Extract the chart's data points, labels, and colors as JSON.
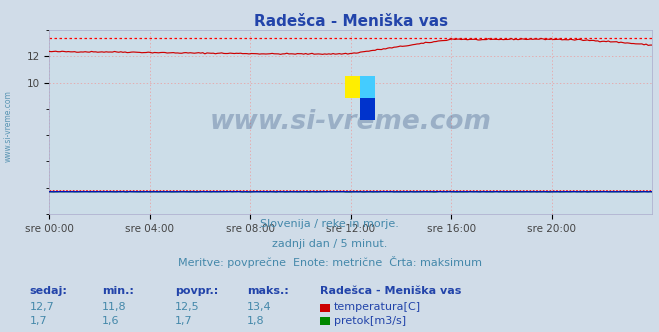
{
  "title": "Radešca - Meniška vas",
  "bg_color": "#d0dce8",
  "plot_bg_color": "#ccdde8",
  "grid_color": "#ee9999",
  "x_labels": [
    "sre 00:00",
    "sre 04:00",
    "sre 08:00",
    "sre 12:00",
    "sre 16:00",
    "sre 20:00"
  ],
  "y_ticks": [
    10,
    12
  ],
  "y_min": 0,
  "y_max": 14.0,
  "temp_color": "#cc0000",
  "flow_color": "#008800",
  "height_color": "#0000cc",
  "max_line_color": "#ff0000",
  "watermark_text": "www.si-vreme.com",
  "watermark_color": "#1a3a6e",
  "watermark_alpha": 0.28,
  "subtitle1": "Slovenija / reke in morje.",
  "subtitle2": "zadnji dan / 5 minut.",
  "subtitle3": "Meritve: povprečne  Enote: metrične  Črta: maksimum",
  "footer_label1": "sedaj:",
  "footer_label2": "min.:",
  "footer_label3": "povpr.:",
  "footer_label4": "maks.:",
  "footer_station": "Radešca - Meniška vas",
  "temp_sedaj": "12,7",
  "temp_min": "11,8",
  "temp_povpr": "12,5",
  "temp_maks": "13,4",
  "flow_sedaj": "1,7",
  "flow_min": "1,6",
  "flow_povpr": "1,7",
  "flow_maks": "1,8",
  "temp_legend": "temperatura[C]",
  "flow_legend": "pretok[m3/s]",
  "n_points": 288,
  "temp_max_line": 13.4,
  "flow_max_line": 1.8,
  "title_color": "#2244aa",
  "subtitle_color": "#4488aa",
  "footer_header_color": "#2244aa",
  "footer_data_color": "#4488aa",
  "left_label_color": "#4488aa"
}
